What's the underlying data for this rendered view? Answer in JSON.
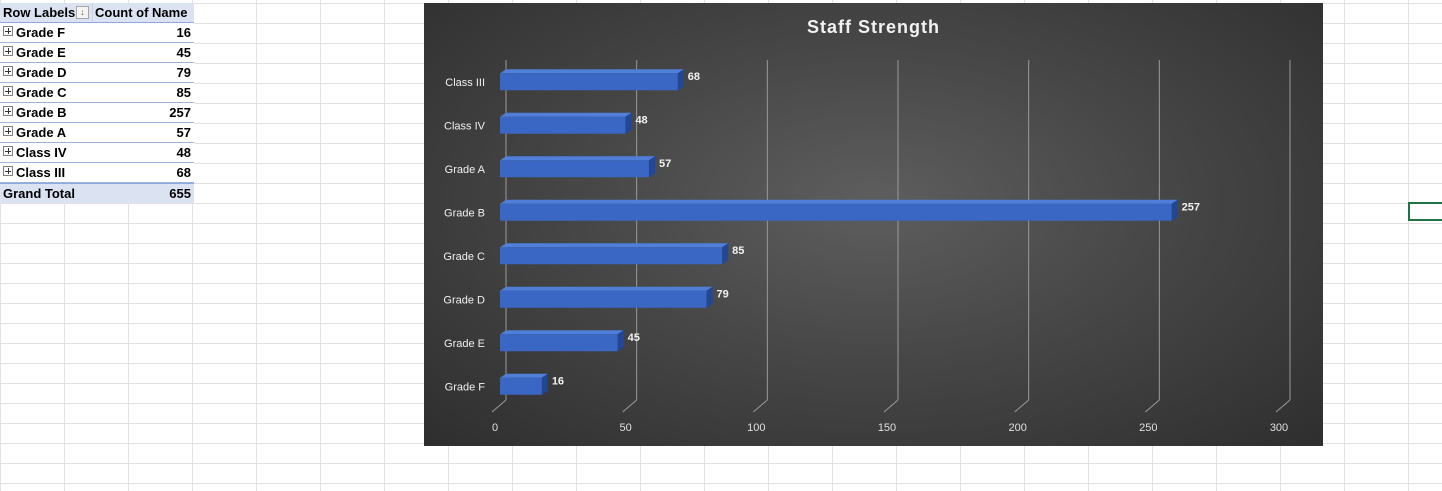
{
  "pivot": {
    "header": {
      "row_labels": "Row Labels",
      "filter_icon": "filter-sort-icon",
      "value_header": "Count of Name"
    },
    "rows": [
      {
        "label": "Grade F",
        "value": "16"
      },
      {
        "label": "Grade E",
        "value": "45"
      },
      {
        "label": "Grade D",
        "value": "79"
      },
      {
        "label": "Grade C",
        "value": "85"
      },
      {
        "label": "Grade B",
        "value": "257"
      },
      {
        "label": "Grade A",
        "value": "57"
      },
      {
        "label": "Class IV",
        "value": "48"
      },
      {
        "label": "Class III",
        "value": "68"
      }
    ],
    "total": {
      "label": "Grand Total",
      "value": "655"
    }
  },
  "chart_data": {
    "type": "bar",
    "orientation": "horizontal",
    "title": "Staff Strength",
    "categories": [
      "Class III",
      "Class IV",
      "Grade A",
      "Grade B",
      "Grade C",
      "Grade D",
      "Grade E",
      "Grade F"
    ],
    "values": [
      68,
      48,
      57,
      257,
      85,
      79,
      45,
      16
    ],
    "xlim": [
      0,
      300
    ],
    "xticks": [
      "0",
      "50",
      "100",
      "150",
      "200",
      "250",
      "300"
    ],
    "grid": true,
    "data_labels": true,
    "legend": "none",
    "colors": {
      "bar": "#3a66c4",
      "bar_top": "#4f7fd9",
      "bar_side": "#24478f",
      "background": "#474747",
      "grid": "#9a9a9a",
      "text": "#f2f2f2"
    }
  }
}
